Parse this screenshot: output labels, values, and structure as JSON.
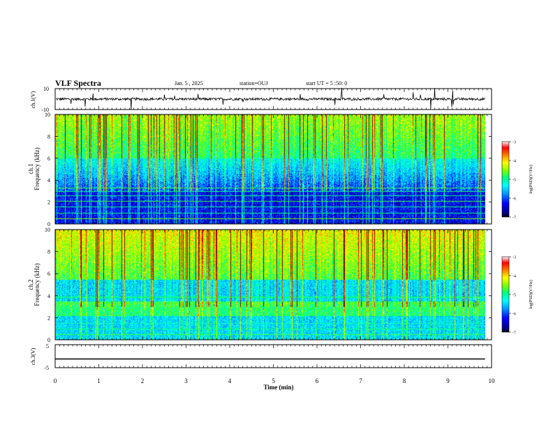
{
  "header": {
    "title": "VLF Spectra",
    "date": "Jan. 5 , 2025",
    "station": "station=OUJ",
    "start": "start UT =  5 :50: 0"
  },
  "chart_data": [
    {
      "type": "line",
      "name": "ch1-waveform",
      "ylabel": "ch.1(V)",
      "ylim": [
        -10,
        10
      ],
      "yticks": [
        "10",
        "-10"
      ],
      "baseline": 0
    },
    {
      "type": "heatmap",
      "name": "ch1-spectrogram",
      "ylabel_top": "ch.1",
      "ylabel": "Frequency (kHz)",
      "ylim": [
        0,
        10
      ],
      "yticks": [
        "0",
        "2",
        "4",
        "6",
        "8",
        "10"
      ],
      "colorbar": {
        "label": "log(PSD)(V²/Hz)",
        "range": [
          -7,
          -3
        ],
        "ticks": [
          "-3",
          "-4",
          "-5",
          "-6",
          "-7"
        ]
      }
    },
    {
      "type": "heatmap",
      "name": "ch2-spectrogram",
      "ylabel_top": "ch.2",
      "ylabel": "Frequency (kHz)",
      "ylim": [
        0,
        10
      ],
      "yticks": [
        "0",
        "2",
        "4",
        "6",
        "8",
        "10"
      ],
      "colorbar": {
        "label": "log(PSD)(V²/Hz)",
        "range": [
          -7,
          -3
        ],
        "ticks": [
          "-3",
          "-4",
          "-5",
          "-6",
          "-7"
        ]
      }
    },
    {
      "type": "line",
      "name": "ch3-waveform",
      "ylabel": "ch.3(V)",
      "ylim": [
        -5,
        5
      ],
      "yticks": [
        "5",
        "-5"
      ],
      "value": -1.2
    }
  ],
  "xaxis": {
    "label": "Time (min)",
    "ticks": [
      "0",
      "1",
      "2",
      "3",
      "4",
      "5",
      "6",
      "7",
      "8",
      "9",
      "10"
    ],
    "range": [
      0,
      10
    ],
    "data_end": 9.85
  },
  "colors": {
    "axis": "#000000",
    "colormap": [
      "#000080",
      "#0000ff",
      "#00a0ff",
      "#00ffff",
      "#00ff80",
      "#80ff00",
      "#ffff00",
      "#ff8000",
      "#ff0000",
      "#800000"
    ]
  }
}
